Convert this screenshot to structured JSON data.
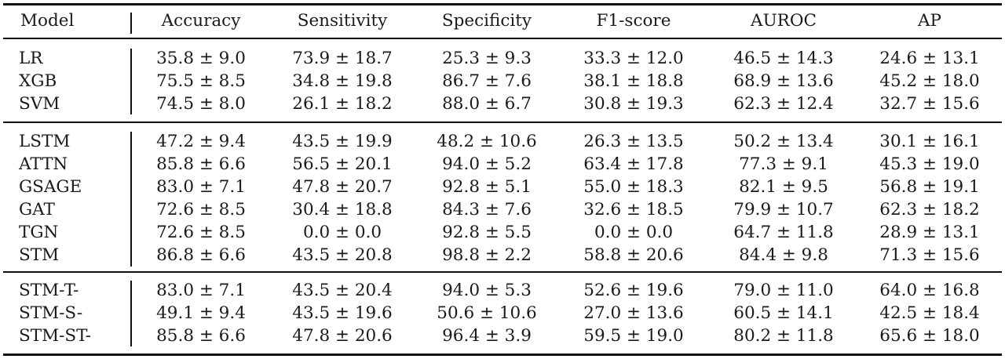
{
  "table": {
    "headers": [
      "Model",
      "Accuracy",
      "Sensitivity",
      "Specificity",
      "F1-score",
      "AUROC",
      "AP"
    ],
    "groups": [
      [
        {
          "model": "LR",
          "values": [
            "35.8 ± 9.0",
            "73.9 ± 18.7",
            "25.3 ± 9.3",
            "33.3 ± 12.0",
            "46.5 ± 14.3",
            "24.6 ± 13.1"
          ]
        },
        {
          "model": "XGB",
          "values": [
            "75.5 ± 8.5",
            "34.8 ± 19.8",
            "86.7 ± 7.6",
            "38.1 ± 18.8",
            "68.9 ± 13.6",
            "45.2 ± 18.0"
          ]
        },
        {
          "model": "SVM",
          "values": [
            "74.5 ± 8.0",
            "26.1 ± 18.2",
            "88.0 ± 6.7",
            "30.8 ± 19.3",
            "62.3 ± 12.4",
            "32.7 ± 15.6"
          ]
        }
      ],
      [
        {
          "model": "LSTM",
          "values": [
            "47.2 ± 9.4",
            "43.5 ± 19.9",
            "48.2 ± 10.6",
            "26.3 ± 13.5",
            "50.2 ± 13.4",
            "30.1 ± 16.1"
          ]
        },
        {
          "model": "ATTN",
          "values": [
            "85.8 ± 6.6",
            "56.5 ± 20.1",
            "94.0 ± 5.2",
            "63.4 ± 17.8",
            "77.3 ± 9.1",
            "45.3 ± 19.0"
          ]
        },
        {
          "model": "GSAGE",
          "values": [
            "83.0 ± 7.1",
            "47.8 ± 20.7",
            "92.8 ± 5.1",
            "55.0 ± 18.3",
            "82.1 ± 9.5",
            "56.8 ± 19.1"
          ]
        },
        {
          "model": "GAT",
          "values": [
            "72.6 ± 8.5",
            "30.4 ± 18.8",
            "84.3 ± 7.6",
            "32.6 ± 18.5",
            "79.9 ± 10.7",
            "62.3 ± 18.2"
          ]
        },
        {
          "model": "TGN",
          "values": [
            "72.6 ± 8.5",
            "0.0 ± 0.0",
            "92.8 ± 5.5",
            "0.0 ± 0.0",
            "64.7 ± 11.8",
            "28.9 ± 13.1"
          ]
        },
        {
          "model": "STM",
          "values": [
            "86.8 ± 6.6",
            "43.5 ± 20.8",
            "98.8 ± 2.2",
            "58.8 ± 20.6",
            "84.4 ± 9.8",
            "71.3 ± 15.6"
          ]
        }
      ],
      [
        {
          "model": "STM-T-",
          "values": [
            "83.0 ± 7.1",
            "43.5 ± 20.4",
            "94.0 ± 5.3",
            "52.6 ± 19.6",
            "79.0 ± 11.0",
            "64.0 ± 16.8"
          ]
        },
        {
          "model": "STM-S-",
          "values": [
            "49.1 ± 9.4",
            "43.5 ± 19.6",
            "50.6 ± 10.6",
            "27.0 ± 13.6",
            "60.5 ± 14.1",
            "42.5 ± 18.4"
          ]
        },
        {
          "model": "STM-ST-",
          "values": [
            "85.8 ± 6.6",
            "47.8 ± 20.6",
            "96.4 ± 3.9",
            "59.5 ± 19.0",
            "80.2 ± 11.8",
            "65.6 ± 18.0"
          ]
        }
      ]
    ]
  }
}
